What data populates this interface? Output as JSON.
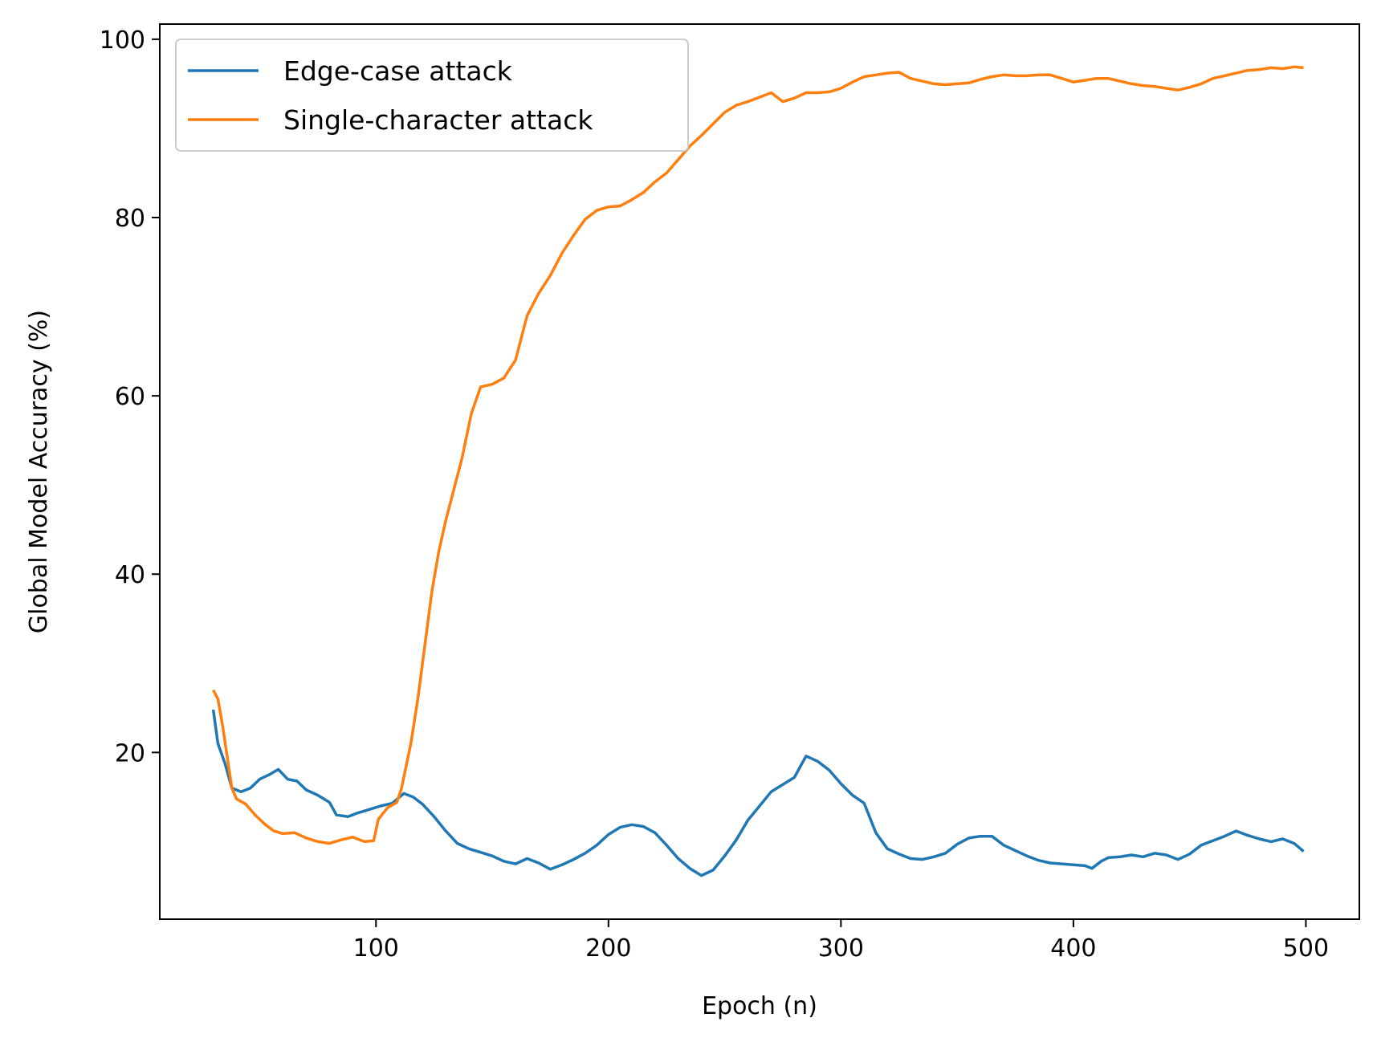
{
  "chart_data": {
    "type": "line",
    "title": "",
    "xlabel": "Epoch (n)",
    "ylabel": "Global Model Accuracy (%)",
    "xlim": [
      7,
      523
    ],
    "ylim": [
      1.3,
      101.7
    ],
    "xticks": [
      100,
      200,
      300,
      400,
      500
    ],
    "yticks": [
      20,
      40,
      60,
      80,
      100
    ],
    "grid": false,
    "legend_position": "top-left",
    "series": [
      {
        "name": "Edge-case attack",
        "color": "#1f77b4",
        "points": [
          [
            30,
            24.8
          ],
          [
            32,
            21.0
          ],
          [
            35,
            18.8
          ],
          [
            38,
            16.0
          ],
          [
            42,
            15.6
          ],
          [
            46,
            16.0
          ],
          [
            50,
            17.0
          ],
          [
            54,
            17.5
          ],
          [
            58,
            18.1
          ],
          [
            62,
            17.0
          ],
          [
            66,
            16.8
          ],
          [
            70,
            15.8
          ],
          [
            75,
            15.2
          ],
          [
            80,
            14.4
          ],
          [
            83,
            13.0
          ],
          [
            88,
            12.8
          ],
          [
            92,
            13.2
          ],
          [
            97,
            13.6
          ],
          [
            102,
            14.0
          ],
          [
            107,
            14.3
          ],
          [
            112,
            15.4
          ],
          [
            116,
            15.0
          ],
          [
            120,
            14.2
          ],
          [
            125,
            12.8
          ],
          [
            130,
            11.2
          ],
          [
            135,
            9.8
          ],
          [
            140,
            9.2
          ],
          [
            145,
            8.8
          ],
          [
            150,
            8.4
          ],
          [
            155,
            7.8
          ],
          [
            160,
            7.5
          ],
          [
            165,
            8.1
          ],
          [
            170,
            7.6
          ],
          [
            175,
            6.9
          ],
          [
            180,
            7.4
          ],
          [
            185,
            8.0
          ],
          [
            190,
            8.7
          ],
          [
            195,
            9.6
          ],
          [
            200,
            10.8
          ],
          [
            205,
            11.6
          ],
          [
            210,
            11.9
          ],
          [
            215,
            11.7
          ],
          [
            220,
            11.0
          ],
          [
            225,
            9.6
          ],
          [
            230,
            8.1
          ],
          [
            235,
            7.0
          ],
          [
            240,
            6.2
          ],
          [
            245,
            6.8
          ],
          [
            250,
            8.4
          ],
          [
            255,
            10.2
          ],
          [
            260,
            12.4
          ],
          [
            265,
            14.0
          ],
          [
            270,
            15.6
          ],
          [
            275,
            16.4
          ],
          [
            280,
            17.2
          ],
          [
            285,
            19.6
          ],
          [
            290,
            19.0
          ],
          [
            295,
            18.0
          ],
          [
            300,
            16.5
          ],
          [
            305,
            15.2
          ],
          [
            310,
            14.3
          ],
          [
            315,
            11.0
          ],
          [
            320,
            9.2
          ],
          [
            325,
            8.6
          ],
          [
            330,
            8.1
          ],
          [
            335,
            8.0
          ],
          [
            340,
            8.3
          ],
          [
            345,
            8.7
          ],
          [
            350,
            9.7
          ],
          [
            355,
            10.4
          ],
          [
            360,
            10.6
          ],
          [
            365,
            10.6
          ],
          [
            370,
            9.6
          ],
          [
            375,
            9.0
          ],
          [
            380,
            8.4
          ],
          [
            385,
            7.9
          ],
          [
            390,
            7.6
          ],
          [
            395,
            7.5
          ],
          [
            400,
            7.4
          ],
          [
            405,
            7.3
          ],
          [
            408,
            7.0
          ],
          [
            412,
            7.8
          ],
          [
            415,
            8.2
          ],
          [
            420,
            8.3
          ],
          [
            425,
            8.5
          ],
          [
            430,
            8.3
          ],
          [
            435,
            8.7
          ],
          [
            440,
            8.5
          ],
          [
            445,
            8.0
          ],
          [
            450,
            8.6
          ],
          [
            455,
            9.6
          ],
          [
            460,
            10.1
          ],
          [
            465,
            10.6
          ],
          [
            470,
            11.2
          ],
          [
            475,
            10.7
          ],
          [
            480,
            10.3
          ],
          [
            485,
            10.0
          ],
          [
            490,
            10.3
          ],
          [
            495,
            9.8
          ],
          [
            499,
            8.9
          ]
        ]
      },
      {
        "name": "Single-character attack",
        "color": "#ff7f0e",
        "points": [
          [
            30,
            27.0
          ],
          [
            32,
            26.0
          ],
          [
            34,
            23.0
          ],
          [
            36,
            19.5
          ],
          [
            38,
            16.0
          ],
          [
            40,
            14.8
          ],
          [
            44,
            14.2
          ],
          [
            48,
            13.0
          ],
          [
            52,
            12.0
          ],
          [
            56,
            11.2
          ],
          [
            60,
            10.9
          ],
          [
            65,
            11.0
          ],
          [
            70,
            10.4
          ],
          [
            75,
            10.0
          ],
          [
            80,
            9.8
          ],
          [
            85,
            10.2
          ],
          [
            90,
            10.5
          ],
          [
            95,
            10.0
          ],
          [
            99,
            10.1
          ],
          [
            101,
            12.5
          ],
          [
            105,
            13.8
          ],
          [
            109,
            14.4
          ],
          [
            111,
            16.0
          ],
          [
            115,
            21.0
          ],
          [
            118,
            26.0
          ],
          [
            121,
            32.0
          ],
          [
            124,
            38.0
          ],
          [
            127,
            42.5
          ],
          [
            130,
            46.0
          ],
          [
            133,
            49.0
          ],
          [
            137,
            53.0
          ],
          [
            141,
            58.0
          ],
          [
            145,
            61.0
          ],
          [
            150,
            61.3
          ],
          [
            155,
            62.0
          ],
          [
            160,
            64.0
          ],
          [
            165,
            69.0
          ],
          [
            170,
            71.5
          ],
          [
            175,
            73.5
          ],
          [
            180,
            76.0
          ],
          [
            185,
            78.0
          ],
          [
            190,
            79.8
          ],
          [
            195,
            80.8
          ],
          [
            200,
            81.2
          ],
          [
            205,
            81.3
          ],
          [
            210,
            82.0
          ],
          [
            215,
            82.8
          ],
          [
            220,
            84.0
          ],
          [
            225,
            85.0
          ],
          [
            230,
            86.5
          ],
          [
            235,
            88.0
          ],
          [
            240,
            89.2
          ],
          [
            245,
            90.5
          ],
          [
            250,
            91.8
          ],
          [
            255,
            92.6
          ],
          [
            260,
            93.0
          ],
          [
            265,
            93.5
          ],
          [
            270,
            94.0
          ],
          [
            275,
            93.0
          ],
          [
            280,
            93.4
          ],
          [
            285,
            94.0
          ],
          [
            290,
            94.0
          ],
          [
            295,
            94.1
          ],
          [
            300,
            94.5
          ],
          [
            305,
            95.2
          ],
          [
            310,
            95.8
          ],
          [
            315,
            96.0
          ],
          [
            320,
            96.2
          ],
          [
            325,
            96.3
          ],
          [
            330,
            95.6
          ],
          [
            335,
            95.3
          ],
          [
            340,
            95.0
          ],
          [
            345,
            94.9
          ],
          [
            350,
            95.0
          ],
          [
            355,
            95.1
          ],
          [
            360,
            95.5
          ],
          [
            365,
            95.8
          ],
          [
            370,
            96.0
          ],
          [
            375,
            95.9
          ],
          [
            380,
            95.9
          ],
          [
            385,
            96.0
          ],
          [
            390,
            96.0
          ],
          [
            395,
            95.6
          ],
          [
            400,
            95.2
          ],
          [
            405,
            95.4
          ],
          [
            410,
            95.6
          ],
          [
            415,
            95.6
          ],
          [
            420,
            95.3
          ],
          [
            425,
            95.0
          ],
          [
            430,
            94.8
          ],
          [
            435,
            94.7
          ],
          [
            440,
            94.5
          ],
          [
            445,
            94.3
          ],
          [
            450,
            94.6
          ],
          [
            455,
            95.0
          ],
          [
            460,
            95.6
          ],
          [
            465,
            95.9
          ],
          [
            470,
            96.2
          ],
          [
            475,
            96.5
          ],
          [
            480,
            96.6
          ],
          [
            485,
            96.8
          ],
          [
            490,
            96.7
          ],
          [
            495,
            96.9
          ],
          [
            499,
            96.8
          ]
        ]
      }
    ]
  }
}
